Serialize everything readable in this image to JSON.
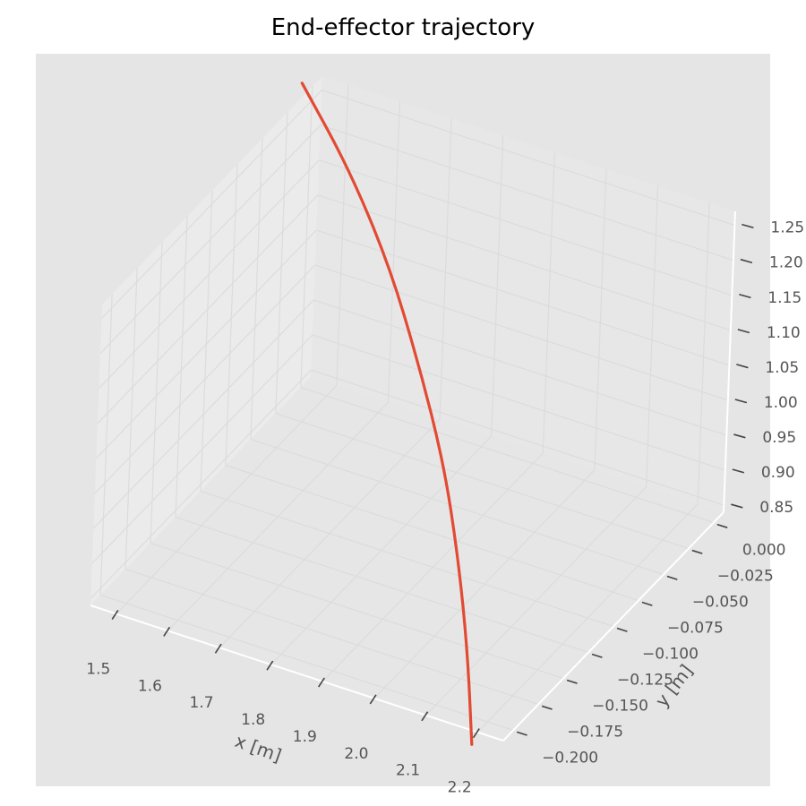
{
  "chart_data": {
    "type": "line",
    "projection": "3d",
    "title": "End-effector trajectory",
    "xlabel": "x [m]",
    "ylabel": "y [m]",
    "zlabel": "",
    "xlim": [
      1.45,
      2.25
    ],
    "ylim": [
      -0.21,
      0.01
    ],
    "zlim": [
      0.84,
      1.27
    ],
    "x_ticks": [
      "1.5",
      "1.6",
      "1.7",
      "1.8",
      "1.9",
      "2.0",
      "2.1",
      "2.2"
    ],
    "y_ticks": [
      "0.000",
      "−0.025",
      "−0.050",
      "−0.075",
      "−0.100",
      "−0.125",
      "−0.150",
      "−0.175",
      "−0.200"
    ],
    "z_ticks": [
      "0.85",
      "0.90",
      "0.95",
      "1.00",
      "1.05",
      "1.10",
      "1.15",
      "1.20",
      "1.25"
    ],
    "grid": true,
    "legend": "none",
    "series": [
      {
        "color": "#E24A33",
        "points": [
          {
            "x": 1.43,
            "y": 0.0,
            "z": 1.27
          },
          {
            "x": 1.58,
            "y": -0.03,
            "z": 1.23
          },
          {
            "x": 1.72,
            "y": -0.06,
            "z": 1.17
          },
          {
            "x": 1.84,
            "y": -0.09,
            "z": 1.1
          },
          {
            "x": 1.95,
            "y": -0.12,
            "z": 1.03
          },
          {
            "x": 2.04,
            "y": -0.15,
            "z": 0.96
          },
          {
            "x": 2.12,
            "y": -0.18,
            "z": 0.89
          },
          {
            "x": 2.19,
            "y": -0.21,
            "z": 0.82
          }
        ]
      }
    ],
    "colors": {
      "panel_background": "#E5E5E5",
      "grid": "#DCDCDC",
      "axis_line": "#FFFFFF",
      "tick_text": "#555555",
      "line": "#E24A33"
    }
  }
}
